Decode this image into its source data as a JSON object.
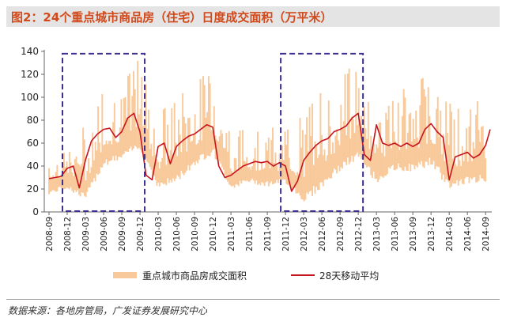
{
  "header": {
    "title": "图2：24个重点城市商品房（住宅）日度成交面积（万平米）"
  },
  "footer": {
    "source": "数据来源：各地房管局，广发证券发展研究中心"
  },
  "colors": {
    "daily": "#f8c99a",
    "ma": "#c8141e",
    "box": "#3b2f8f",
    "title": "#d24a1c"
  },
  "chart_data": {
    "type": "line",
    "ylim": [
      0,
      140
    ],
    "yticks": [
      0,
      20,
      40,
      60,
      80,
      100,
      120,
      140
    ],
    "x_tick_labels": [
      "2008-09",
      "2008-12",
      "2009-03",
      "2009-06",
      "2009-09",
      "2009-12",
      "2010-03",
      "2010-06",
      "2010-09",
      "2010-12",
      "2011-03",
      "2011-06",
      "2011-09",
      "2011-12",
      "2012-03",
      "2012-06",
      "2012-09",
      "2012-12",
      "2013-03",
      "2013-06",
      "2013-09",
      "2013-12",
      "2014-03",
      "2014-06",
      "2014-09"
    ],
    "legend": {
      "placement": "bottom"
    },
    "highlight_periods": [
      {
        "start": "2008-12",
        "end": "2009-12"
      },
      {
        "start": "2011-12",
        "end": "2012-12"
      }
    ],
    "series": [
      {
        "name": "重点城市商品房成交面积",
        "kind": "band",
        "x": [
          "2008-09",
          "2008-12",
          "2009-03",
          "2009-06",
          "2009-09",
          "2009-12",
          "2010-03",
          "2010-06",
          "2010-09",
          "2010-12",
          "2011-03",
          "2011-06",
          "2011-09",
          "2011-12",
          "2012-03",
          "2012-06",
          "2012-09",
          "2012-12",
          "2013-03",
          "2013-06",
          "2013-09",
          "2013-12",
          "2014-03",
          "2014-06",
          "2014-09"
        ],
        "low": [
          15,
          20,
          10,
          40,
          45,
          55,
          20,
          25,
          40,
          50,
          20,
          25,
          22,
          25,
          8,
          20,
          35,
          45,
          25,
          35,
          35,
          40,
          20,
          25,
          25
        ],
        "high": [
          55,
          62,
          75,
          105,
          110,
          135,
          85,
          100,
          110,
          128,
          70,
          72,
          75,
          70,
          85,
          105,
          118,
          132,
          98,
          110,
          108,
          125,
          95,
          85,
          110
        ]
      },
      {
        "name": "28天移动平均",
        "kind": "line",
        "x": [
          "2008-09",
          "2008-10",
          "2008-11",
          "2008-12",
          "2009-01",
          "2009-02",
          "2009-03",
          "2009-04",
          "2009-05",
          "2009-06",
          "2009-07",
          "2009-08",
          "2009-09",
          "2009-10",
          "2009-11",
          "2009-12",
          "2010-01",
          "2010-02",
          "2010-03",
          "2010-04",
          "2010-05",
          "2010-06",
          "2010-07",
          "2010-08",
          "2010-09",
          "2010-10",
          "2010-11",
          "2010-12",
          "2011-01",
          "2011-02",
          "2011-03",
          "2011-04",
          "2011-05",
          "2011-06",
          "2011-07",
          "2011-08",
          "2011-09",
          "2011-10",
          "2011-11",
          "2011-12",
          "2012-01",
          "2012-02",
          "2012-03",
          "2012-04",
          "2012-05",
          "2012-06",
          "2012-07",
          "2012-08",
          "2012-09",
          "2012-10",
          "2012-11",
          "2012-12",
          "2013-01",
          "2013-02",
          "2013-03",
          "2013-04",
          "2013-05",
          "2013-06",
          "2013-07",
          "2013-08",
          "2013-09",
          "2013-10",
          "2013-11",
          "2013-12",
          "2014-01",
          "2014-02",
          "2014-03",
          "2014-04",
          "2014-05",
          "2014-06",
          "2014-07",
          "2014-08",
          "2014-09",
          "2014-10"
        ],
        "values": [
          29,
          30,
          31,
          38,
          40,
          21,
          45,
          62,
          68,
          72,
          73,
          65,
          70,
          82,
          86,
          70,
          32,
          28,
          57,
          60,
          42,
          57,
          62,
          66,
          68,
          72,
          76,
          74,
          40,
          30,
          32,
          36,
          40,
          42,
          44,
          43,
          44,
          40,
          43,
          40,
          18,
          27,
          45,
          52,
          58,
          62,
          64,
          70,
          72,
          75,
          82,
          86,
          50,
          45,
          76,
          60,
          58,
          60,
          57,
          60,
          57,
          60,
          72,
          77,
          70,
          65,
          28,
          48,
          50,
          52,
          47,
          50,
          58,
          72
        ]
      }
    ]
  }
}
